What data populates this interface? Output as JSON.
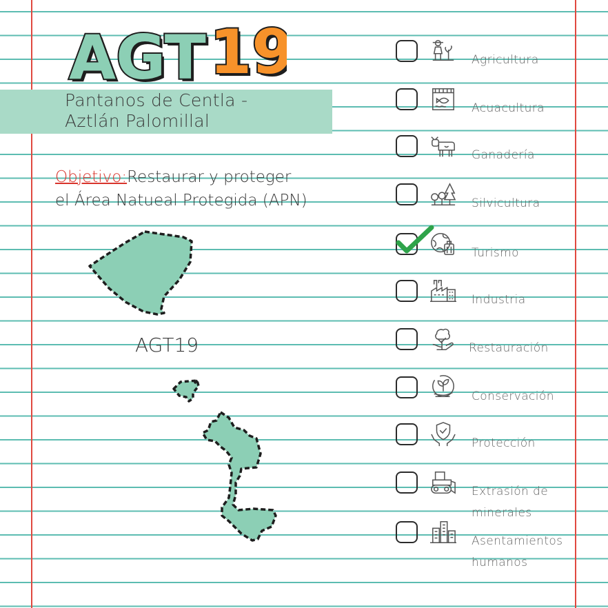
{
  "title": {
    "prefix": "AGT",
    "number": "19"
  },
  "subtitle": {
    "line1": "Pantanos de Centla -",
    "line2": "Aztlán Palomillal"
  },
  "objective": {
    "label": "Objetivo:",
    "text_line1": "Restaurar y proteger",
    "text_line2": "el Área Natueal Protegida (APN)"
  },
  "map": {
    "label": "AGT19"
  },
  "colors": {
    "accent_orange": "#f7922a",
    "accent_green": "#8ccfb5",
    "banner": "#a9dac7",
    "line": "#5cbcb1",
    "margin": "#e0483f",
    "check": "#2ea34a"
  },
  "checklist": [
    {
      "label": "Agricultura",
      "icon": "farmer-icon",
      "checked": false
    },
    {
      "label": "Acuacultura",
      "icon": "fish-pond-icon",
      "checked": false
    },
    {
      "label": "Ganadería",
      "icon": "cow-icon",
      "checked": false
    },
    {
      "label": "Silvicultura",
      "icon": "trees-icon",
      "checked": false
    },
    {
      "label": "Turismo",
      "icon": "globe-luggage-icon",
      "checked": true
    },
    {
      "label": "Industria",
      "icon": "factory-icon",
      "checked": false
    },
    {
      "label": "Restauración",
      "icon": "tree-hand-icon",
      "checked": false
    },
    {
      "label": "Conservación",
      "icon": "sprout-hand-icon",
      "checked": false
    },
    {
      "label": "Protección",
      "icon": "shield-hands-icon",
      "checked": false
    },
    {
      "label_line1": "Extrasión de",
      "label_line2": "minerales",
      "icon": "bulldozer-icon",
      "checked": false
    },
    {
      "label_line1": "Asentamientos",
      "label_line2": "humanos",
      "icon": "city-icon",
      "checked": false
    }
  ]
}
